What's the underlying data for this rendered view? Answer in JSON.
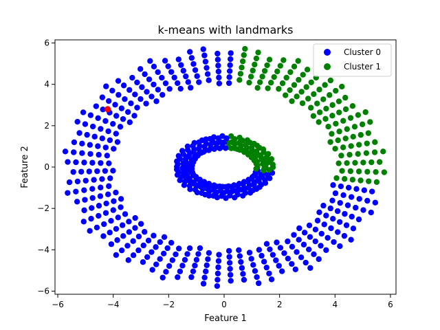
{
  "chart_data": {
    "type": "scatter",
    "title": "k-means with landmarks",
    "xlabel": "Feature 1",
    "ylabel": "Feature 2",
    "xlim": [
      -6.1,
      6.2
    ],
    "ylim": [
      -6.15,
      6.15
    ],
    "xticks": [
      -6,
      -4,
      -2,
      0,
      2,
      4,
      6
    ],
    "yticks": [
      -6,
      -4,
      -2,
      0,
      2,
      4,
      6
    ],
    "xtick_labels": [
      "−6",
      "−4",
      "−2",
      "0",
      "2",
      "4",
      "6"
    ],
    "ytick_labels": [
      "−6",
      "−4",
      "−2",
      "0",
      "2",
      "4",
      "6"
    ],
    "grid": false,
    "legend_position": "top-right",
    "series": [
      {
        "name": "Cluster 0",
        "color": "#0000ff"
      },
      {
        "name": "Cluster 1",
        "color": "#008000"
      }
    ],
    "structure": {
      "outer_ring": {
        "spokes": 72,
        "radii": [
          4.2,
          4.5,
          4.8,
          5.1,
          5.4,
          5.7
        ],
        "angle_offset_deg": 2.5
      },
      "inner_ring": {
        "points_per_ring": 70,
        "radii_x": [
          1.2,
          1.45,
          1.7
        ],
        "radii_y": [
          0.95,
          1.2,
          1.45
        ]
      },
      "cluster_1_sector_deg": [
        -10,
        86
      ]
    },
    "landmarks": [
      {
        "x": -4.2,
        "y": 2.8,
        "color": "#ff0000"
      }
    ]
  }
}
